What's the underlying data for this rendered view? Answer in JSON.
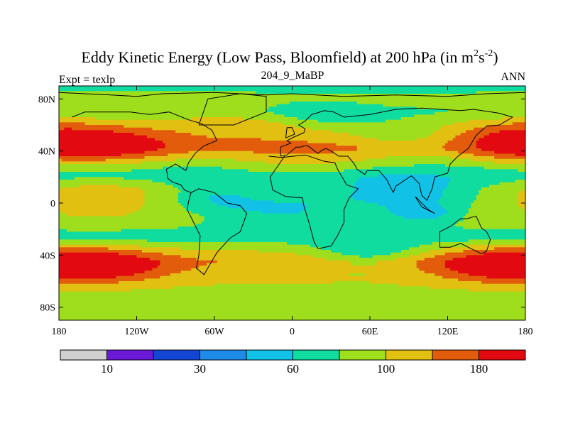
{
  "chart_data": {
    "type": "heatmap",
    "title": "Eddy Kinetic Energy (Low Pass, Bloomfield) at 200 hPa (in m",
    "title_units_sup1": "2",
    "title_units_s": "s",
    "title_units_sup2": "-2",
    "title_close": ")",
    "subtitle": "204_9_MaBP",
    "left_label": "Expt = texlp",
    "right_label": "ANN",
    "x_ticks": [
      {
        "value": -180,
        "label": "180"
      },
      {
        "value": -120,
        "label": "120W"
      },
      {
        "value": -60,
        "label": "60W"
      },
      {
        "value": 0,
        "label": "0"
      },
      {
        "value": 60,
        "label": "60E"
      },
      {
        "value": 120,
        "label": "120E"
      },
      {
        "value": 180,
        "label": "180"
      }
    ],
    "y_ticks": [
      {
        "value": 80,
        "label": "80N"
      },
      {
        "value": 40,
        "label": "40N"
      },
      {
        "value": 0,
        "label": "0"
      },
      {
        "value": -40,
        "label": "40S"
      },
      {
        "value": -80,
        "label": "80S"
      }
    ],
    "xlim": [
      -180,
      180
    ],
    "ylim": [
      -90,
      90
    ],
    "levels": [
      0,
      10,
      20,
      30,
      40,
      60,
      80,
      100,
      130,
      180,
      200,
      250
    ],
    "colorbar": {
      "colors": [
        "#d0d0d0",
        "#6a1ad6",
        "#1446d6",
        "#1e8ce6",
        "#12c2e6",
        "#10dca0",
        "#9ede1c",
        "#e2c012",
        "#e25c0c",
        "#e20a10"
      ],
      "labels": [
        {
          "boundary_index": 1,
          "text": "10"
        },
        {
          "boundary_index": 3,
          "text": "30"
        },
        {
          "boundary_index": 5,
          "text": "60"
        },
        {
          "boundary_index": 7,
          "text": "100"
        },
        {
          "boundary_index": 9,
          "text": "180"
        }
      ]
    },
    "field": {
      "baseline": [
        [
          90,
          75
        ],
        [
          80,
          85
        ],
        [
          70,
          80
        ],
        [
          60,
          100
        ],
        [
          50,
          105
        ],
        [
          42,
          120
        ],
        [
          35,
          92
        ],
        [
          28,
          78
        ],
        [
          20,
          72
        ],
        [
          10,
          95
        ],
        [
          0,
          95
        ],
        [
          -10,
          95
        ],
        [
          -20,
          80
        ],
        [
          -28,
          75
        ],
        [
          -35,
          95
        ],
        [
          -45,
          125
        ],
        [
          -55,
          105
        ],
        [
          -62,
          100
        ],
        [
          -70,
          95
        ],
        [
          -80,
          90
        ],
        [
          -90,
          80
        ]
      ],
      "components": [
        {
          "lon": -135,
          "lat": 45,
          "amp": 115,
          "slon": 30,
          "slat": 7
        },
        {
          "lon": 180,
          "lat": 47,
          "amp": 75,
          "slon": 30,
          "slat": 8
        },
        {
          "lon": -180,
          "lat": 47,
          "amp": 75,
          "slon": 30,
          "slat": 8
        },
        {
          "lon": -160,
          "lat": -48,
          "amp": 90,
          "slon": 40,
          "slat": 7
        },
        {
          "lon": 180,
          "lat": -48,
          "amp": 90,
          "slon": 40,
          "slat": 7
        },
        {
          "lon": -180,
          "lat": -48,
          "amp": 90,
          "slon": 40,
          "slat": 7
        },
        {
          "lon": 10,
          "lat": 38,
          "amp": 25,
          "slon": 45,
          "slat": 10
        },
        {
          "lon": -150,
          "lat": 5,
          "amp": 20,
          "slon": 28,
          "slat": 10
        },
        {
          "lon": -50,
          "lat": 55,
          "amp": 20,
          "slon": 40,
          "slat": 10
        },
        {
          "lon": 85,
          "lat": 8,
          "amp": -48,
          "slon": 40,
          "slat": 9
        },
        {
          "lon": 100,
          "lat": -8,
          "amp": -40,
          "slon": 22,
          "slat": 5
        },
        {
          "lon": 20,
          "lat": 65,
          "amp": -18,
          "slon": 28,
          "slat": 8
        },
        {
          "lon": 80,
          "lat": 55,
          "amp": -20,
          "slon": 25,
          "slat": 8
        },
        {
          "lon": -60,
          "lat": 5,
          "amp": -30,
          "slon": 25,
          "slat": 10
        },
        {
          "lon": -5,
          "lat": -5,
          "amp": -35,
          "slon": 35,
          "slat": 10
        },
        {
          "lon": 60,
          "lat": -40,
          "amp": -35,
          "slon": 32,
          "slat": 8
        }
      ]
    },
    "coastlines": [
      [
        [
          -180,
          85
        ],
        [
          -140,
          83
        ],
        [
          -120,
          82
        ],
        [
          -100,
          84
        ],
        [
          -60,
          85
        ],
        [
          -40,
          84
        ],
        [
          -20,
          83
        ],
        [
          0,
          84
        ],
        [
          40,
          82
        ],
        [
          80,
          83
        ],
        [
          120,
          82
        ],
        [
          150,
          84
        ],
        [
          180,
          85
        ]
      ],
      [
        [
          -170,
          66
        ],
        [
          -160,
          70
        ],
        [
          -140,
          70
        ],
        [
          -125,
          70
        ],
        [
          -110,
          68
        ],
        [
          -95,
          70
        ],
        [
          -80,
          64
        ],
        [
          -70,
          61
        ],
        [
          -62,
          56
        ],
        [
          -58,
          48
        ],
        [
          -68,
          44
        ],
        [
          -75,
          38
        ],
        [
          -80,
          31
        ],
        [
          -82,
          25
        ],
        [
          -90,
          30
        ],
        [
          -97,
          26
        ],
        [
          -96,
          19
        ],
        [
          -92,
          16
        ],
        [
          -86,
          14
        ],
        [
          -83,
          10
        ],
        [
          -78,
          8
        ],
        [
          -80,
          1
        ],
        [
          -81,
          -5
        ],
        [
          -76,
          -15
        ],
        [
          -71,
          -25
        ],
        [
          -72,
          -40
        ],
        [
          -74,
          -50
        ],
        [
          -68,
          -55
        ],
        [
          -64,
          -48
        ],
        [
          -58,
          -38
        ],
        [
          -48,
          -27
        ],
        [
          -40,
          -22
        ],
        [
          -35,
          -8
        ],
        [
          -40,
          -2
        ],
        [
          -50,
          0
        ],
        [
          -60,
          8
        ],
        [
          -72,
          11
        ],
        [
          -78,
          8
        ]
      ],
      [
        [
          -18,
          36
        ],
        [
          -8,
          35
        ],
        [
          10,
          37
        ],
        [
          25,
          32
        ],
        [
          33,
          31
        ],
        [
          35,
          26
        ],
        [
          42,
          14
        ],
        [
          51,
          11
        ],
        [
          44,
          4
        ],
        [
          40,
          -5
        ],
        [
          40,
          -15
        ],
        [
          35,
          -25
        ],
        [
          30,
          -33
        ],
        [
          20,
          -35
        ],
        [
          17,
          -30
        ],
        [
          13,
          -15
        ],
        [
          9,
          -2
        ],
        [
          8,
          4
        ],
        [
          -5,
          5
        ],
        [
          -15,
          10
        ],
        [
          -17,
          20
        ],
        [
          -10,
          30
        ],
        [
          -6,
          36
        ]
      ],
      [
        [
          -9,
          36
        ],
        [
          -9,
          43
        ],
        [
          -1,
          46
        ],
        [
          -4,
          48
        ],
        [
          2,
          51
        ],
        [
          9,
          54
        ],
        [
          10,
          57
        ],
        [
          5,
          60
        ],
        [
          10,
          63
        ],
        [
          15,
          68
        ],
        [
          25,
          71
        ],
        [
          32,
          70
        ],
        [
          40,
          66
        ],
        [
          60,
          68
        ],
        [
          80,
          72
        ],
        [
          100,
          73
        ],
        [
          130,
          71
        ],
        [
          140,
          72
        ],
        [
          160,
          69
        ],
        [
          170,
          66
        ],
        [
          160,
          60
        ],
        [
          150,
          59
        ],
        [
          142,
          52
        ],
        [
          136,
          42
        ],
        [
          128,
          36
        ],
        [
          122,
          30
        ],
        [
          120,
          23
        ],
        [
          110,
          20
        ],
        [
          108,
          11
        ],
        [
          104,
          2
        ],
        [
          100,
          6
        ],
        [
          98,
          15
        ],
        [
          92,
          21
        ],
        [
          80,
          13
        ],
        [
          78,
          8
        ],
        [
          73,
          18
        ],
        [
          67,
          25
        ],
        [
          58,
          25
        ],
        [
          56,
          22
        ],
        [
          50,
          26
        ],
        [
          48,
          30
        ],
        [
          43,
          36
        ],
        [
          36,
          36
        ],
        [
          30,
          40
        ],
        [
          26,
          42
        ],
        [
          22,
          40
        ],
        [
          20,
          38
        ],
        [
          12,
          44
        ],
        [
          10,
          44
        ],
        [
          6,
          43
        ],
        [
          3,
          43
        ],
        [
          -4,
          37
        ],
        [
          -9,
          36
        ]
      ],
      [
        [
          114,
          -22
        ],
        [
          114,
          -34
        ],
        [
          122,
          -34
        ],
        [
          130,
          -31
        ],
        [
          138,
          -35
        ],
        [
          146,
          -39
        ],
        [
          150,
          -37
        ],
        [
          153,
          -28
        ],
        [
          150,
          -22
        ],
        [
          146,
          -19
        ],
        [
          142,
          -10
        ],
        [
          135,
          -12
        ],
        [
          130,
          -12
        ],
        [
          122,
          -18
        ],
        [
          114,
          -22
        ]
      ],
      [
        [
          -5,
          50
        ],
        [
          -4,
          58
        ],
        [
          0,
          58
        ],
        [
          2,
          53
        ],
        [
          -5,
          50
        ]
      ],
      [
        [
          -72,
          60
        ],
        [
          -45,
          60
        ],
        [
          -20,
          70
        ],
        [
          -20,
          82
        ],
        [
          -40,
          84
        ],
        [
          -65,
          80
        ],
        [
          -72,
          60
        ]
      ],
      [
        [
          95,
          5
        ],
        [
          105,
          -5
        ],
        [
          110,
          -8
        ],
        [
          100,
          -3
        ],
        [
          95,
          5
        ]
      ]
    ]
  }
}
